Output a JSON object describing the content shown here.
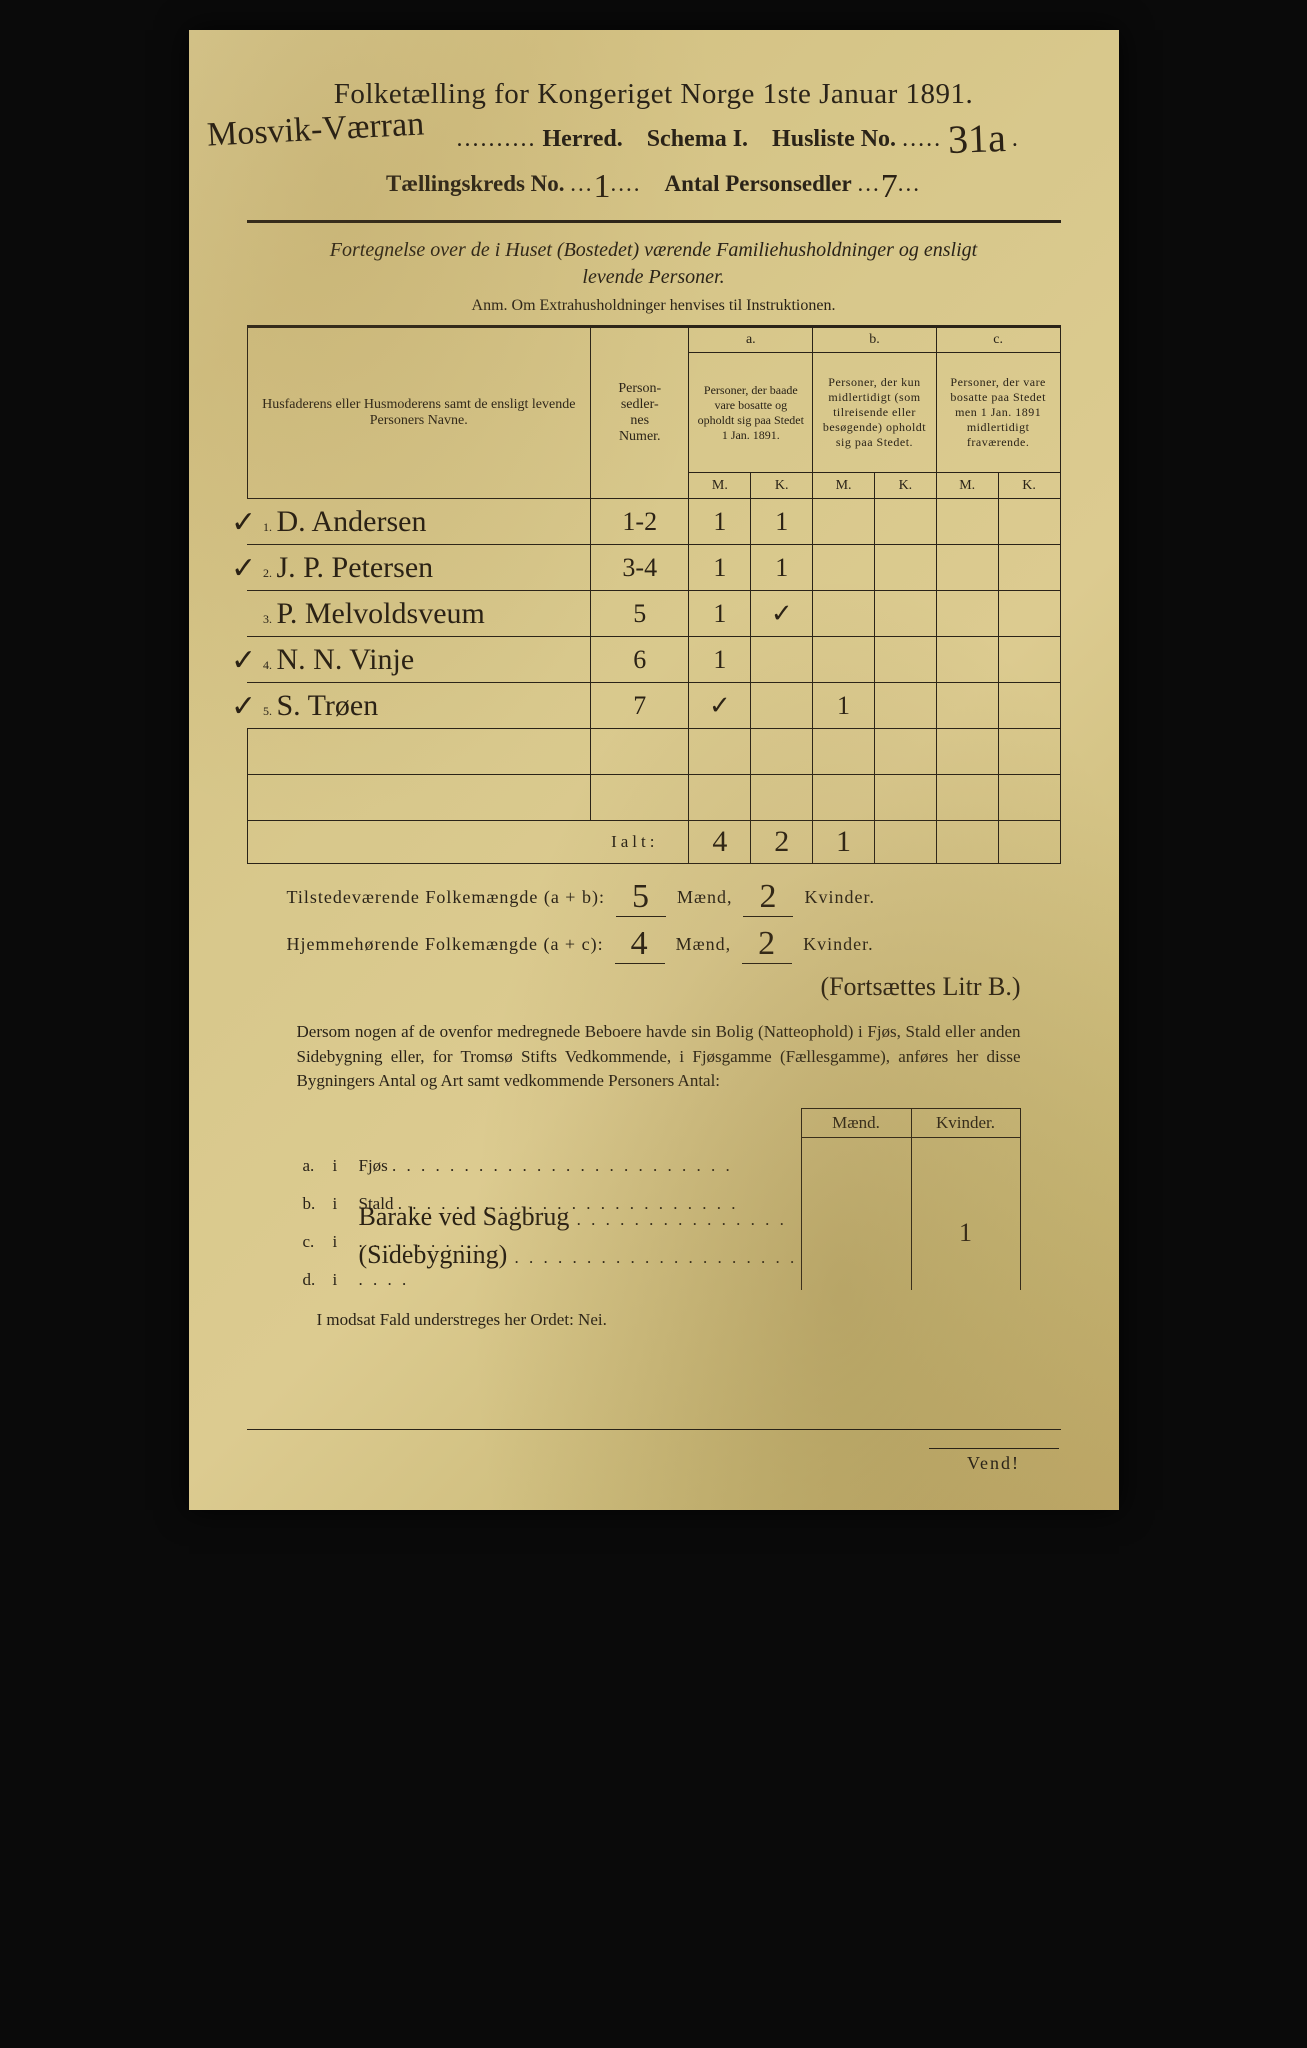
{
  "colors": {
    "paper_base": "#d8c88c",
    "paper_dark": "#bfa968",
    "ink_print": "#2a2318",
    "ink_hand": "#2b2215",
    "background": "#0a0a0a"
  },
  "typography": {
    "print_family": "Times New Roman",
    "hand_family": "Brush Script MT",
    "title_size_pt": 22,
    "body_size_pt": 13
  },
  "header": {
    "title": "Folketælling for Kongeriget Norge 1ste Januar 1891.",
    "herred_hand": "Mosvik-Værran",
    "herred_label": "Herred.",
    "schema": "Schema I.",
    "husliste_label": "Husliste No.",
    "husliste_no": "31a",
    "kreds_label": "Tællingskreds No.",
    "kreds_no": "1",
    "antal_label": "Antal Personsedler",
    "antal": "7"
  },
  "subtitle": "Fortegnelse over de i Huset (Bostedet) værende Familiehusholdninger og ensligt levende Personer.",
  "anm": "Anm.  Om Extrahusholdninger henvises til Instruktionen.",
  "table": {
    "col_name": "Husfaderens eller Husmoderens samt de ensligt levende Personers Navne.",
    "col_num": "Person-\nsedler-\nnes\nNumer.",
    "col_a_head": "a.",
    "col_a": "Personer, der baade vare bosatte og opholdt sig paa Stedet 1 Jan. 1891.",
    "col_b_head": "b.",
    "col_b": "Personer, der kun midlertidigt (som tilreisende eller besøgende) opholdt sig paa Stedet.",
    "col_c_head": "c.",
    "col_c": "Personer, der vare bosatte paa Stedet men 1 Jan. 1891 midlertidigt fraværende.",
    "mk_m": "M.",
    "mk_k": "K.",
    "rows": [
      {
        "tick": "✓",
        "n": "1.",
        "name": "D. Andersen",
        "num": "1-2",
        "aM": "1",
        "aK": "1",
        "bM": "",
        "bK": "",
        "cM": "",
        "cK": ""
      },
      {
        "tick": "✓",
        "n": "2.",
        "name": "J. P. Petersen",
        "num": "3-4",
        "aM": "1",
        "aK": "1",
        "bM": "",
        "bK": "",
        "cM": "",
        "cK": ""
      },
      {
        "tick": "",
        "n": "3.",
        "name": "P. Melvoldsveum",
        "num": "5",
        "aM": "1",
        "aK": "✓",
        "bM": "",
        "bK": "",
        "cM": "",
        "cK": ""
      },
      {
        "tick": "✓",
        "n": "4.",
        "name": "N. N. Vinje",
        "num": "6",
        "aM": "1",
        "aK": "",
        "bM": "",
        "bK": "",
        "cM": "",
        "cK": ""
      },
      {
        "tick": "✓",
        "n": "5.",
        "name": "S. Trøen",
        "num": "7",
        "aM": "✓",
        "aK": "",
        "bM": "1",
        "bK": "",
        "cM": "",
        "cK": ""
      }
    ],
    "blank_rows": 2,
    "ialt_label": "Ialt:",
    "ialt": {
      "aM": "4",
      "aK": "2",
      "bM": "1",
      "bK": "",
      "cM": "",
      "cK": ""
    }
  },
  "totals": {
    "line1_label": "Tilstedeværende Folkemængde (a + b):",
    "line1_m": "5",
    "line1_k": "2",
    "line2_label": "Hjemmehørende Folkemængde (a + c):",
    "line2_m": "4",
    "line2_k": "2",
    "m_label": "Mænd,",
    "k_label": "Kvinder.",
    "fortsatter": "(Fortsættes Litr B.)"
  },
  "paragraph": "Dersom nogen af de ovenfor medregnede Beboere havde sin Bolig (Natteophold) i Fjøs, Stald eller anden Sidebygning eller, for Tromsø Stifts Vedkommende, i Fjøsgamme (Fællesgamme), anføres her disse Bygningers Antal og Art samt vedkommende Personers Antal:",
  "dwellings": {
    "m_label": "Mænd.",
    "k_label": "Kvinder.",
    "rows": [
      {
        "lbl": "a.",
        "type_print": "Fjøs",
        "type_hand": "",
        "m": "",
        "k": ""
      },
      {
        "lbl": "b.",
        "type_print": "Stald",
        "type_hand": "",
        "m": "",
        "k": ""
      },
      {
        "lbl": "c.",
        "type_print": "",
        "type_hand": "Barake ved Sagbrug",
        "m": "",
        "k": "1"
      },
      {
        "lbl": "d.",
        "type_print": "",
        "type_hand": "(Sidebygning)",
        "m": "",
        "k": ""
      }
    ]
  },
  "nei": "I modsat Fald understreges her Ordet: Nei.",
  "vend": "Vend!"
}
